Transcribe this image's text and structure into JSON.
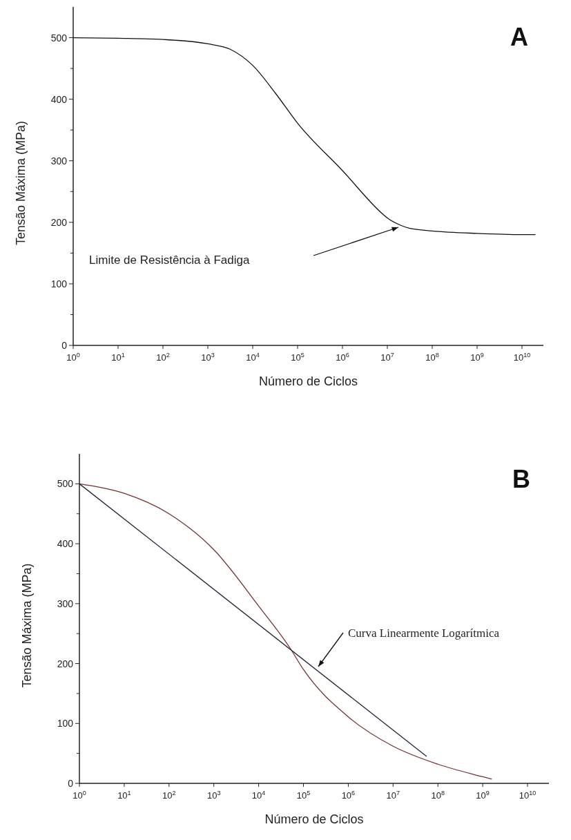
{
  "chart_data": [
    {
      "type": "line",
      "annotations": [
        "A",
        "Limite de Resistência à Fadiga"
      ],
      "xlabel": "Número de Ciclos",
      "ylabel": "Tensão Máxima (MPa)",
      "log": "x",
      "xlim": [
        1,
        30000000000
      ],
      "ylim": [
        0,
        550
      ],
      "xticks": [
        {
          "value": 1,
          "label": "10$^{0}$"
        },
        {
          "value": 10,
          "label": "10$^{1}$"
        },
        {
          "value": 100,
          "label": "10$^{2}$"
        },
        {
          "value": 1000,
          "label": "10$^{3}$"
        },
        {
          "value": 10000,
          "label": "10$^{4}$"
        },
        {
          "value": 100000,
          "label": "10$^{5}$"
        },
        {
          "value": 1000000,
          "label": "10$^{6}$"
        },
        {
          "value": 10000000,
          "label": "10$^{7}$"
        },
        {
          "value": 100000000,
          "label": "10$^{8}$"
        },
        {
          "value": 1000000000,
          "label": "10$^{9}$"
        },
        {
          "value": 10000000000,
          "label": "10$^{10}$"
        }
      ],
      "yticks": [
        0,
        {
          "value": 50,
          "label": null
        },
        100,
        {
          "value": 150,
          "label": null
        },
        200,
        {
          "value": 250,
          "label": null
        },
        300,
        {
          "value": 350,
          "label": null
        },
        400,
        {
          "value": 450,
          "label": null
        },
        500
      ],
      "grid": false,
      "series": [
        {
          "color": "#111111",
          "x": [
            1,
            10,
            100,
            1000,
            3200,
            10000,
            32000,
            100000,
            1000000,
            8000000,
            10000000,
            20000000,
            32000000,
            100000000,
            1000000000,
            10000000000,
            20000000000
          ],
          "values": [
            500,
            499,
            497,
            490,
            481,
            455,
            410,
            361,
            284,
            213,
            207,
            195,
            190,
            186,
            182,
            180,
            180
          ]
        }
      ]
    },
    {
      "type": "line",
      "annotations": [
        "B",
        "Curva Linearmente Logarítmica"
      ],
      "xlabel": "Número de Ciclos",
      "ylabel": "Tensão Máxima (MPa)",
      "log": "x",
      "xlim": [
        1,
        30000000000
      ],
      "ylim": [
        0,
        550
      ],
      "xticks": [
        {
          "value": 1,
          "label": "10$^{0}$"
        },
        {
          "value": 10,
          "label": "10$^{1}$"
        },
        {
          "value": 100,
          "label": "10$^{2}$"
        },
        {
          "value": 1000,
          "label": "10$^{3}$"
        },
        {
          "value": 10000,
          "label": "10$^{4}$"
        },
        {
          "value": 100000,
          "label": "10$^{5}$"
        },
        {
          "value": 1000000,
          "label": "10$^{6}$"
        },
        {
          "value": 10000000,
          "label": "10$^{7}$"
        },
        {
          "value": 100000000,
          "label": "10$^{8}$"
        },
        {
          "value": 1000000000,
          "label": "10$^{9}$"
        },
        {
          "value": 10000000000,
          "label": "10$^{10}$"
        }
      ],
      "yticks": [
        0,
        {
          "value": 50,
          "label": null
        },
        100,
        {
          "value": 150,
          "label": null
        },
        200,
        {
          "value": 250,
          "label": null
        },
        300,
        {
          "value": 350,
          "label": null
        },
        400,
        {
          "value": 450,
          "label": null
        },
        500
      ],
      "grid": false,
      "series": [
        {
          "color": "#7a3030",
          "x": [
            1,
            10,
            100,
            1000,
            10000,
            50000,
            100000,
            1000000,
            10000000,
            100000000,
            1000000000,
            1600000000
          ],
          "values": [
            500,
            484,
            450,
            390,
            296,
            226,
            190,
            111,
            62,
            32,
            11,
            7
          ]
        },
        {
          "color": "#23233a",
          "x": [
            1,
            56000000
          ],
          "values": [
            500,
            45
          ]
        }
      ]
    }
  ]
}
